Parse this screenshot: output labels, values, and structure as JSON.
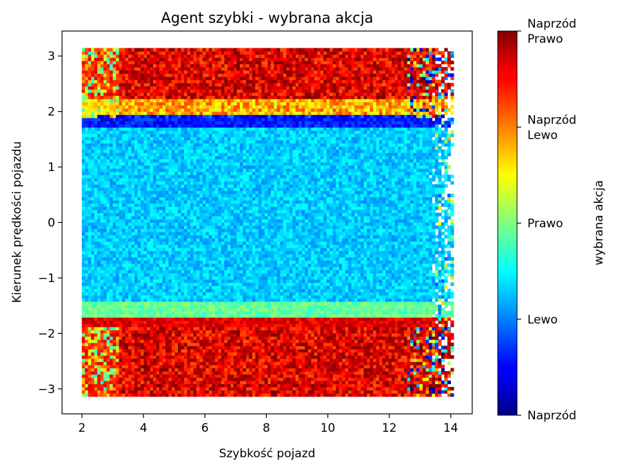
{
  "chart_data": {
    "type": "heatmap",
    "title": "Agent szybki - wybrana akcja",
    "xlabel": "Szybkość pojazd",
    "ylabel": "Kierunek prędkości pojazdu",
    "xlim": [
      1.35,
      14.7
    ],
    "ylim": [
      -3.45,
      3.45
    ],
    "x_ticks": [
      2,
      4,
      6,
      8,
      10,
      12,
      14
    ],
    "y_ticks": [
      -3,
      -2,
      -1,
      0,
      1,
      2,
      3
    ],
    "colorbar": {
      "label": "wybrana akcja",
      "colormap": "jet",
      "range": [
        0,
        4
      ],
      "ticks": [
        {
          "value": 0,
          "label": "Naprzód"
        },
        {
          "value": 1,
          "label": "Lewo"
        },
        {
          "value": 2,
          "label": "Prawo"
        },
        {
          "value": 3,
          "label": "Naprzód\nLewo"
        },
        {
          "value": 4,
          "label": "Naprzód\nPrawo"
        }
      ]
    },
    "data_extent": {
      "x": [
        2.0,
        14.1
      ],
      "y": [
        -3.14,
        3.14
      ]
    },
    "regions": [
      {
        "y": [
          2.2,
          3.14
        ],
        "dominant_value": 3.6
      },
      {
        "y": [
          1.95,
          2.2
        ],
        "dominant_value": 2.8
      },
      {
        "y": [
          1.7,
          1.95
        ],
        "dominant_value": 0.6
      },
      {
        "y": [
          -1.45,
          1.7
        ],
        "dominant_value": 1.3
      },
      {
        "y": [
          -1.7,
          -1.45
        ],
        "dominant_value": 1.9
      },
      {
        "y": [
          -3.14,
          -1.7
        ],
        "dominant_value": 3.6
      }
    ]
  }
}
